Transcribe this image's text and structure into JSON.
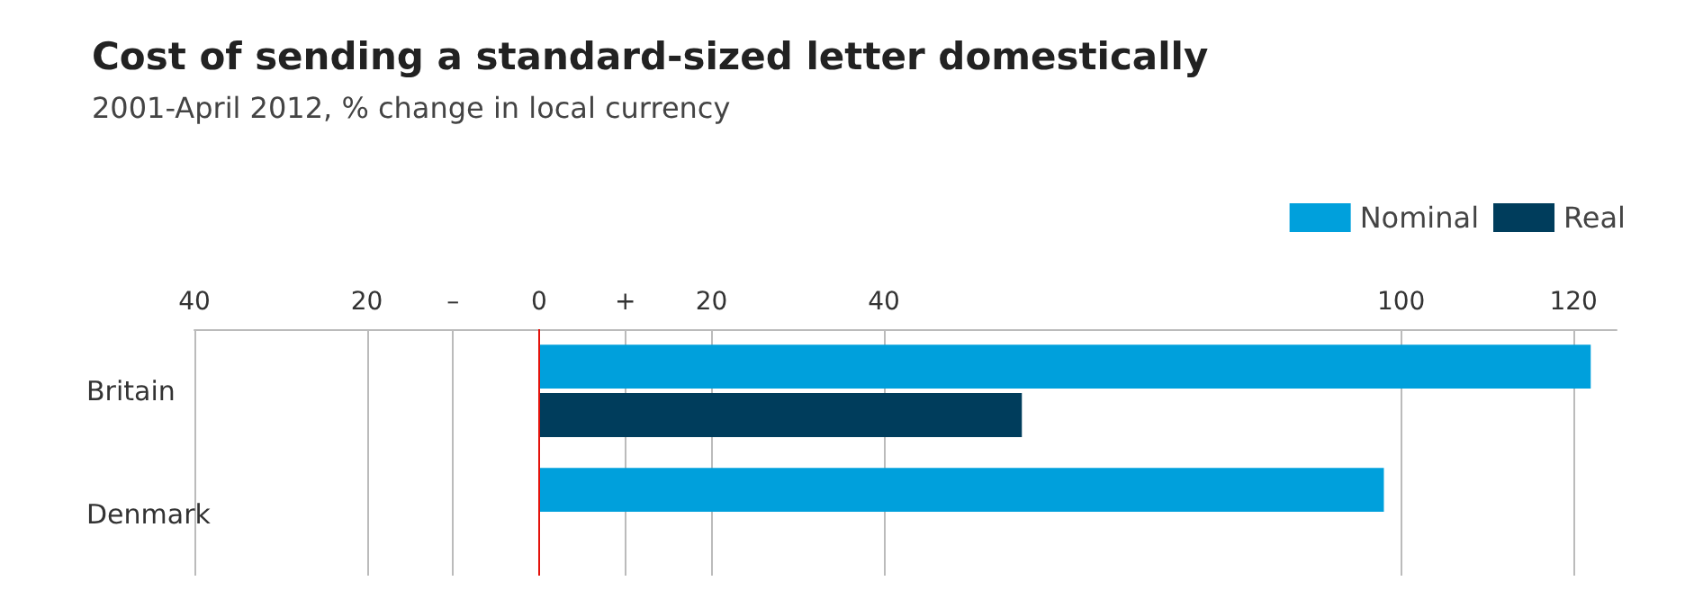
{
  "chart_data": {
    "type": "bar",
    "orientation": "horizontal",
    "title": "Cost of sending a standard-sized letter domestically",
    "subtitle": "2001-April 2012, % change in local currency",
    "categories": [
      "Britain",
      "Denmark"
    ],
    "series": [
      {
        "name": "Nominal",
        "color": "#00a0dc",
        "values": [
          122,
          98
        ]
      },
      {
        "name": "Real",
        "color": "#003d5c",
        "values": [
          56,
          null
        ]
      }
    ],
    "xlim": [
      -40,
      125
    ],
    "xticks": [
      {
        "value": -40,
        "label": "40"
      },
      {
        "value": -20,
        "label": "20"
      },
      {
        "value": -10,
        "label": "–"
      },
      0,
      {
        "value": 10,
        "label": "+"
      },
      20,
      40,
      100,
      120
    ],
    "grid": "x",
    "legend": "top right",
    "ref_lines": [
      {
        "axis": "x",
        "value": 0,
        "label": null,
        "color": "#e3120b"
      }
    ]
  }
}
